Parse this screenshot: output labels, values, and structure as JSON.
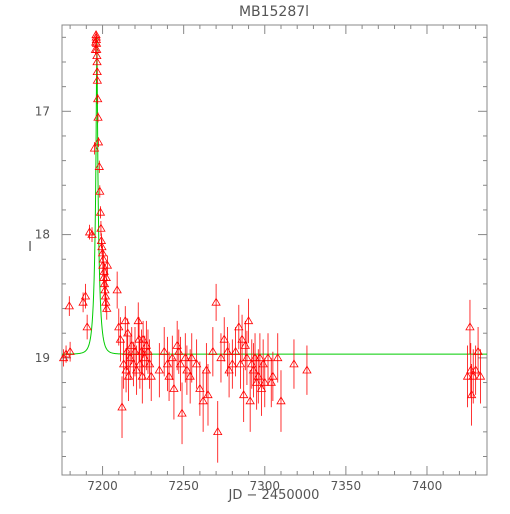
{
  "chart_data": {
    "type": "scatter",
    "title": "MB15287l",
    "xlabel": "JD − 2450000",
    "ylabel": "I",
    "xlim": [
      7175,
      7437
    ],
    "ylim": [
      19.95,
      16.3
    ],
    "y_inverted": true,
    "grid": false,
    "legend": "none",
    "xticks": [
      7200,
      7250,
      7300,
      7350,
      7400
    ],
    "yticks": [
      17,
      18,
      19
    ],
    "colors": {
      "points": "#ff0000",
      "errorbars": "#ff0000",
      "model": "#00cc00",
      "axes": "#888888"
    },
    "model": {
      "name": "",
      "baseline": 18.97,
      "peak_mag": 16.38,
      "t0": 7196.5,
      "tE": 2.6
    },
    "series": [
      {
        "name": "",
        "points": [
          [
            7176.0,
            19.0,
            0.07
          ],
          [
            7177.5,
            18.97,
            0.07
          ],
          [
            7179.5,
            18.58,
            0.08
          ],
          [
            7180.0,
            18.95,
            0.08
          ],
          [
            7188.0,
            18.55,
            0.08
          ],
          [
            7189.5,
            18.5,
            0.1
          ],
          [
            7190.5,
            18.75,
            0.1
          ],
          [
            7192.0,
            17.98,
            0.06
          ],
          [
            7193.5,
            18.0,
            0.06
          ],
          [
            7195.0,
            17.3,
            0.05
          ],
          [
            7195.6,
            16.5,
            0.04
          ],
          [
            7195.8,
            16.44,
            0.04
          ],
          [
            7196.0,
            16.38,
            0.03
          ],
          [
            7196.1,
            16.4,
            0.03
          ],
          [
            7196.2,
            16.42,
            0.03
          ],
          [
            7196.3,
            16.45,
            0.03
          ],
          [
            7196.4,
            16.5,
            0.03
          ],
          [
            7196.5,
            16.55,
            0.03
          ],
          [
            7196.6,
            16.6,
            0.03
          ],
          [
            7196.7,
            16.68,
            0.03
          ],
          [
            7196.8,
            16.75,
            0.03
          ],
          [
            7197.0,
            16.9,
            0.04
          ],
          [
            7197.2,
            17.05,
            0.04
          ],
          [
            7197.5,
            17.25,
            0.04
          ],
          [
            7198.0,
            17.45,
            0.05
          ],
          [
            7198.3,
            17.65,
            0.05
          ],
          [
            7198.7,
            17.82,
            0.05
          ],
          [
            7199.0,
            17.95,
            0.06
          ],
          [
            7199.3,
            18.05,
            0.06
          ],
          [
            7199.6,
            18.1,
            0.06
          ],
          [
            7200.0,
            18.15,
            0.06
          ],
          [
            7200.2,
            18.25,
            0.07
          ],
          [
            7200.5,
            18.2,
            0.07
          ],
          [
            7200.7,
            18.35,
            0.07
          ],
          [
            7201.0,
            18.3,
            0.07
          ],
          [
            7201.2,
            18.4,
            0.08
          ],
          [
            7201.5,
            18.45,
            0.08
          ],
          [
            7201.8,
            18.5,
            0.08
          ],
          [
            7202.0,
            18.55,
            0.08
          ],
          [
            7202.3,
            18.35,
            0.08
          ],
          [
            7202.6,
            18.6,
            0.09
          ],
          [
            7203.0,
            18.25,
            0.08
          ],
          [
            7209.0,
            18.45,
            0.15
          ],
          [
            7210.0,
            18.75,
            0.15
          ],
          [
            7211.0,
            18.85,
            0.18
          ],
          [
            7212.0,
            19.4,
            0.25
          ],
          [
            7213.0,
            19.05,
            0.2
          ],
          [
            7214.0,
            18.7,
            0.12
          ],
          [
            7214.5,
            19.1,
            0.18
          ],
          [
            7215.0,
            18.95,
            0.15
          ],
          [
            7215.5,
            18.8,
            0.12
          ],
          [
            7216.0,
            19.15,
            0.2
          ],
          [
            7217.0,
            19.0,
            0.18
          ],
          [
            7218.0,
            18.9,
            0.15
          ],
          [
            7219.0,
            19.05,
            0.18
          ],
          [
            7220.0,
            18.95,
            0.2
          ],
          [
            7221.0,
            19.1,
            0.2
          ],
          [
            7222.0,
            18.7,
            0.15
          ],
          [
            7222.5,
            18.85,
            0.18
          ],
          [
            7223.0,
            19.05,
            0.2
          ],
          [
            7224.0,
            18.95,
            0.18
          ],
          [
            7224.5,
            19.15,
            0.22
          ],
          [
            7225.0,
            18.85,
            0.15
          ],
          [
            7226.0,
            19.0,
            0.18
          ],
          [
            7227.0,
            18.9,
            0.2
          ],
          [
            7228.0,
            18.95,
            0.18
          ],
          [
            7229.0,
            19.05,
            0.2
          ],
          [
            7230.0,
            19.15,
            0.2
          ],
          [
            7235.0,
            19.1,
            0.22
          ],
          [
            7238.0,
            18.95,
            0.2
          ],
          [
            7240.0,
            19.05,
            0.22
          ],
          [
            7241.0,
            19.15,
            0.2
          ],
          [
            7243.0,
            19.0,
            0.18
          ],
          [
            7244.0,
            19.25,
            0.25
          ],
          [
            7246.0,
            18.9,
            0.2
          ],
          [
            7247.0,
            18.95,
            0.18
          ],
          [
            7248.0,
            19.05,
            0.22
          ],
          [
            7249.0,
            19.45,
            0.25
          ],
          [
            7251.0,
            19.0,
            0.2
          ],
          [
            7252.0,
            19.1,
            0.2
          ],
          [
            7254.0,
            19.15,
            0.22
          ],
          [
            7255.0,
            19.0,
            0.2
          ],
          [
            7258.0,
            19.05,
            0.2
          ],
          [
            7260.0,
            19.25,
            0.22
          ],
          [
            7262.0,
            19.35,
            0.25
          ],
          [
            7264.0,
            19.1,
            0.22
          ],
          [
            7265.0,
            19.3,
            0.25
          ],
          [
            7268.0,
            18.95,
            0.2
          ],
          [
            7270.0,
            18.55,
            0.15
          ],
          [
            7271.0,
            19.6,
            0.25
          ],
          [
            7273.0,
            19.0,
            0.2
          ],
          [
            7275.0,
            18.85,
            0.18
          ],
          [
            7277.0,
            18.95,
            0.2
          ],
          [
            7278.0,
            19.1,
            0.22
          ],
          [
            7280.0,
            19.05,
            0.2
          ],
          [
            7282.0,
            18.95,
            0.2
          ],
          [
            7284.0,
            18.75,
            0.18
          ],
          [
            7285.0,
            19.05,
            0.2
          ],
          [
            7286.0,
            18.85,
            0.2
          ],
          [
            7287.0,
            19.3,
            0.22
          ],
          [
            7288.0,
            18.9,
            0.2
          ],
          [
            7289.0,
            19.0,
            0.22
          ],
          [
            7290.0,
            18.7,
            0.18
          ],
          [
            7291.0,
            19.35,
            0.25
          ],
          [
            7292.0,
            19.05,
            0.2
          ],
          [
            7293.0,
            19.1,
            0.22
          ],
          [
            7294.0,
            19.0,
            0.2
          ],
          [
            7295.0,
            19.2,
            0.22
          ],
          [
            7296.0,
            19.15,
            0.22
          ],
          [
            7297.0,
            19.0,
            0.2
          ],
          [
            7298.0,
            19.25,
            0.22
          ],
          [
            7299.0,
            19.05,
            0.2
          ],
          [
            7300.0,
            19.2,
            0.2
          ],
          [
            7302.0,
            19.0,
            0.2
          ],
          [
            7304.0,
            19.2,
            0.2
          ],
          [
            7305.0,
            19.15,
            0.2
          ],
          [
            7308.0,
            19.0,
            0.2
          ],
          [
            7310.0,
            19.35,
            0.25
          ],
          [
            7318.0,
            19.05,
            0.2
          ],
          [
            7326.0,
            19.1,
            0.2
          ],
          [
            7425.0,
            19.15,
            0.25
          ],
          [
            7426.5,
            18.75,
            0.22
          ],
          [
            7427.0,
            19.1,
            0.22
          ],
          [
            7427.5,
            19.3,
            0.25
          ],
          [
            7428.5,
            19.15,
            0.22
          ],
          [
            7430.0,
            19.1,
            0.2
          ],
          [
            7431.5,
            18.95,
            0.2
          ],
          [
            7433.0,
            19.15,
            0.22
          ]
        ]
      }
    ]
  }
}
